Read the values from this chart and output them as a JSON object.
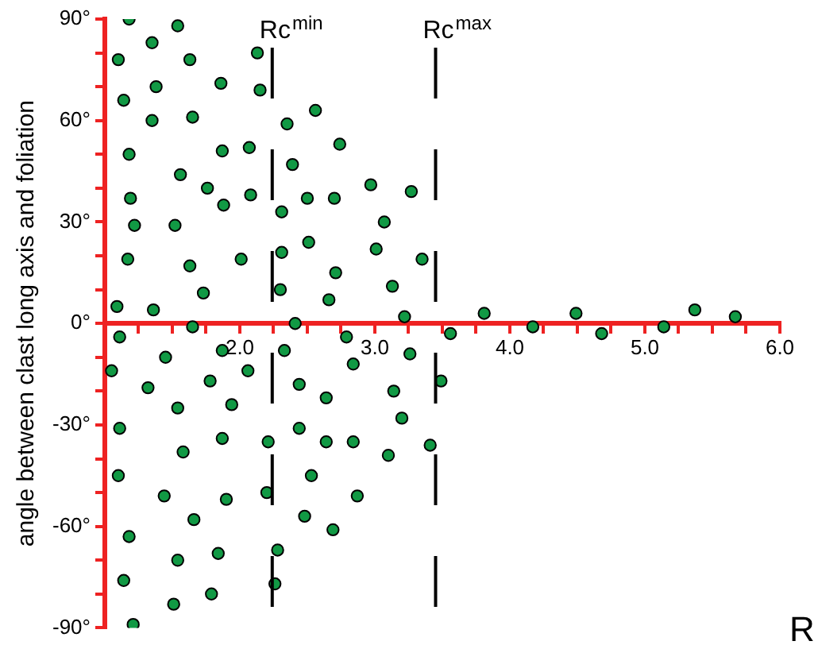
{
  "chart_data": {
    "type": "scatter",
    "xlabel": "R",
    "ylabel": "angle between clast long axis and foliation",
    "xlim": [
      1,
      6
    ],
    "ylim": [
      -90,
      90
    ],
    "xticks": [
      {
        "value": 1,
        "label": null
      },
      {
        "value": 1.25,
        "label": null
      },
      {
        "value": 1.5,
        "label": null
      },
      {
        "value": 1.75,
        "label": null
      },
      {
        "value": 2,
        "label": "2.0"
      },
      {
        "value": 2.25,
        "label": null
      },
      {
        "value": 2.5,
        "label": null
      },
      {
        "value": 2.75,
        "label": null
      },
      {
        "value": 3,
        "label": "3.0"
      },
      {
        "value": 3.25,
        "label": null
      },
      {
        "value": 3.5,
        "label": null
      },
      {
        "value": 3.75,
        "label": null
      },
      {
        "value": 4,
        "label": "4.0"
      },
      {
        "value": 4.25,
        "label": null
      },
      {
        "value": 4.5,
        "label": null
      },
      {
        "value": 4.75,
        "label": null
      },
      {
        "value": 5,
        "label": "5.0"
      },
      {
        "value": 5.25,
        "label": null
      },
      {
        "value": 5.5,
        "label": null
      },
      {
        "value": 5.75,
        "label": null
      },
      {
        "value": 6,
        "label": "6.0"
      }
    ],
    "yticks": [
      {
        "value": -90,
        "label": "-90°"
      },
      {
        "value": -80,
        "label": null
      },
      {
        "value": -70,
        "label": null
      },
      {
        "value": -60,
        "label": "-60°"
      },
      {
        "value": -50,
        "label": null
      },
      {
        "value": -40,
        "label": null
      },
      {
        "value": -30,
        "label": "-30°"
      },
      {
        "value": -20,
        "label": null
      },
      {
        "value": -10,
        "label": null
      },
      {
        "value": 0,
        "label": "0°"
      },
      {
        "value": 10,
        "label": null
      },
      {
        "value": 20,
        "label": null
      },
      {
        "value": 30,
        "label": "30°"
      },
      {
        "value": 40,
        "label": null
      },
      {
        "value": 50,
        "label": null
      },
      {
        "value": 60,
        "label": "60°"
      },
      {
        "value": 70,
        "label": null
      },
      {
        "value": 80,
        "label": null
      },
      {
        "value": 90,
        "label": "90°"
      }
    ],
    "grid": false,
    "legend": false,
    "marker": "circle",
    "ref_lines": [
      {
        "axis": "x",
        "value": 2.24,
        "label": "Rc$^{min}$",
        "color": "#000000",
        "line_style": "dashed"
      },
      {
        "axis": "x",
        "value": 3.45,
        "label": "Rc$^{max}$",
        "color": "#000000",
        "line_style": "dashed"
      }
    ],
    "series": [
      {
        "color": "#119944",
        "x": [
          1.18,
          1.35,
          1.54,
          1.1,
          1.63,
          2.13,
          1.38,
          1.86,
          2.15,
          1.14,
          2.56,
          1.35,
          1.65,
          2.35,
          2.74,
          1.18,
          1.87,
          2.07,
          2.39,
          1.56,
          1.76,
          2.97,
          3.27,
          1.19,
          1.88,
          2.08,
          2.5,
          2.7,
          2.31,
          1.22,
          1.52,
          3.07,
          1.17,
          1.63,
          2.01,
          2.31,
          2.51,
          3.01,
          2.71,
          1.73,
          2.3,
          3.13,
          1.09,
          1.36,
          2.66,
          3.22,
          1.65,
          2.41,
          3.35,
          3.56,
          3.81,
          4.17,
          4.49,
          4.68,
          5.14,
          5.37,
          5.67,
          3.26,
          3.49,
          3.14,
          3.2,
          3.1,
          3.41,
          1.11,
          1.45,
          1.87,
          2.33,
          2.79,
          1.05,
          1.78,
          2.06,
          2.44,
          2.84,
          1.32,
          1.54,
          1.94,
          2.64,
          1.11,
          1.87,
          2.21,
          2.44,
          2.64,
          2.84,
          1.58,
          1.1,
          2.53,
          1.44,
          1.9,
          2.2,
          2.87,
          1.66,
          2.48,
          2.69,
          1.18,
          1.54,
          1.84,
          2.28,
          1.14,
          2.26,
          1.51,
          1.79,
          1.21
        ],
        "values": [
          90,
          83,
          88,
          78,
          78,
          80,
          70,
          71,
          69,
          66,
          63,
          60,
          61,
          59,
          53,
          50,
          51,
          52,
          47,
          44,
          40,
          41,
          39,
          37,
          35,
          38,
          37,
          37,
          33,
          29,
          29,
          30,
          19,
          17,
          19,
          21,
          24,
          22,
          15,
          9,
          10,
          11,
          5,
          4,
          7,
          2,
          -1,
          0,
          19,
          -3,
          3,
          -1,
          3,
          -3,
          -1,
          4,
          2,
          -9,
          -17,
          -20,
          -28,
          -39,
          -36,
          -4,
          -10,
          -8,
          -8,
          -4,
          -14,
          -17,
          -14,
          -18,
          -12,
          -19,
          -25,
          -24,
          -22,
          -31,
          -34,
          -35,
          -31,
          -35,
          -35,
          -38,
          -45,
          -45,
          -51,
          -52,
          -50,
          -51,
          -58,
          -57,
          -61,
          -63,
          -70,
          -68,
          -67,
          -76,
          -77,
          -83,
          -80,
          -89
        ]
      }
    ]
  }
}
